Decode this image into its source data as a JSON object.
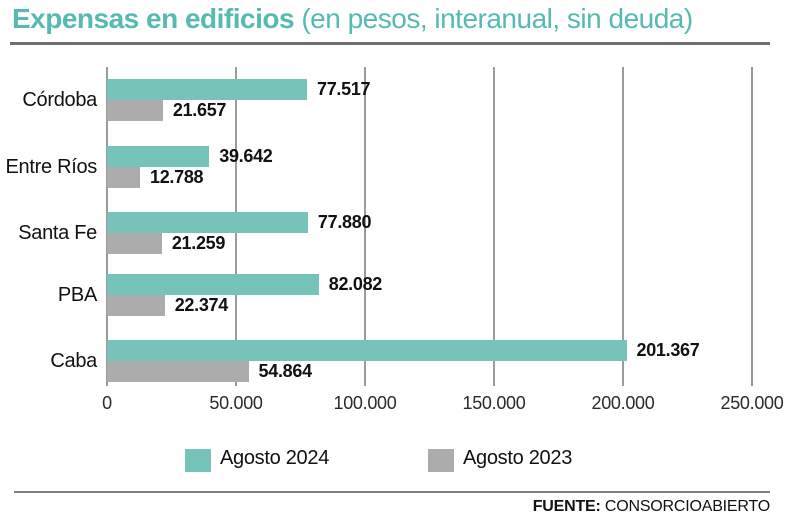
{
  "header": {
    "title_bold": "Expensas en edificios",
    "title_rest": " (en pesos, interanual, sin deuda)"
  },
  "colors": {
    "title_teal": "#56BAB2",
    "bar_teal": "#76C3BC",
    "bar_gray": "#ACACAC",
    "gridline": "#9B9B9B",
    "top_rule": "#6E6E6E",
    "bottom_rule": "#808080"
  },
  "chart_data": {
    "type": "bar",
    "orientation": "horizontal",
    "title": "Expensas en edificios (en pesos, interanual, sin deuda)",
    "categories": [
      "Córdoba",
      "Entre Ríos",
      "Santa Fe",
      "PBA",
      "Caba"
    ],
    "series": [
      {
        "name": "Agosto 2024",
        "color": "#76C3BC",
        "values": [
          77517,
          39642,
          77880,
          82082,
          201367
        ],
        "labels": [
          "77.517",
          "39.642",
          "77.880",
          "82.082",
          "201.367"
        ]
      },
      {
        "name": "Agosto 2023",
        "color": "#ACACAC",
        "values": [
          21657,
          12788,
          21259,
          22374,
          54864
        ],
        "labels": [
          "21.657",
          "12.788",
          "21.259",
          "22.374",
          "54.864"
        ]
      }
    ],
    "xlim": [
      0,
      250000
    ],
    "x_ticks": [
      "0",
      "50.000",
      "100.000",
      "150.000",
      "200.000",
      "250.000"
    ],
    "grid": true,
    "legend_position": "bottom"
  },
  "footer": {
    "source_label": "FUENTE:",
    "source_value": " CONSORCIOABIERTO"
  }
}
